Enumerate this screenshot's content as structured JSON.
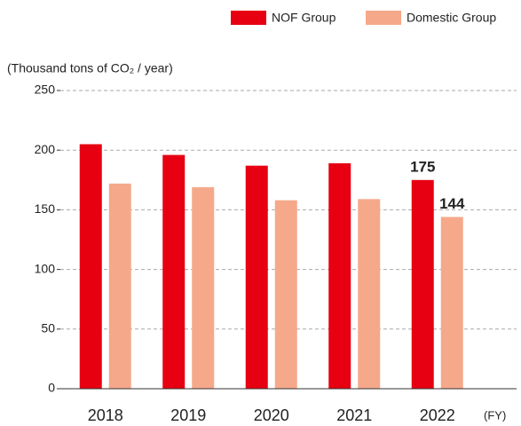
{
  "chart_data": {
    "type": "bar",
    "y_label": "(Thousand tons of CO₂ / year)",
    "x_label": "(FY)",
    "categories": [
      "2018",
      "2019",
      "2020",
      "2021",
      "2022"
    ],
    "series": [
      {
        "name": "NOF Group",
        "color": "#e60012",
        "values": [
          205,
          196,
          187,
          189,
          175
        ],
        "value_labels": [
          null,
          null,
          null,
          null,
          "175"
        ]
      },
      {
        "name": "Domestic Group",
        "color": "#f5a98a",
        "values": [
          172,
          169,
          158,
          159,
          144
        ],
        "value_labels": [
          null,
          null,
          null,
          null,
          "144"
        ]
      }
    ],
    "ylim": [
      0,
      250
    ],
    "yticks": [
      0,
      50,
      100,
      150,
      200,
      250
    ],
    "grid": true,
    "legend": "top-right"
  }
}
